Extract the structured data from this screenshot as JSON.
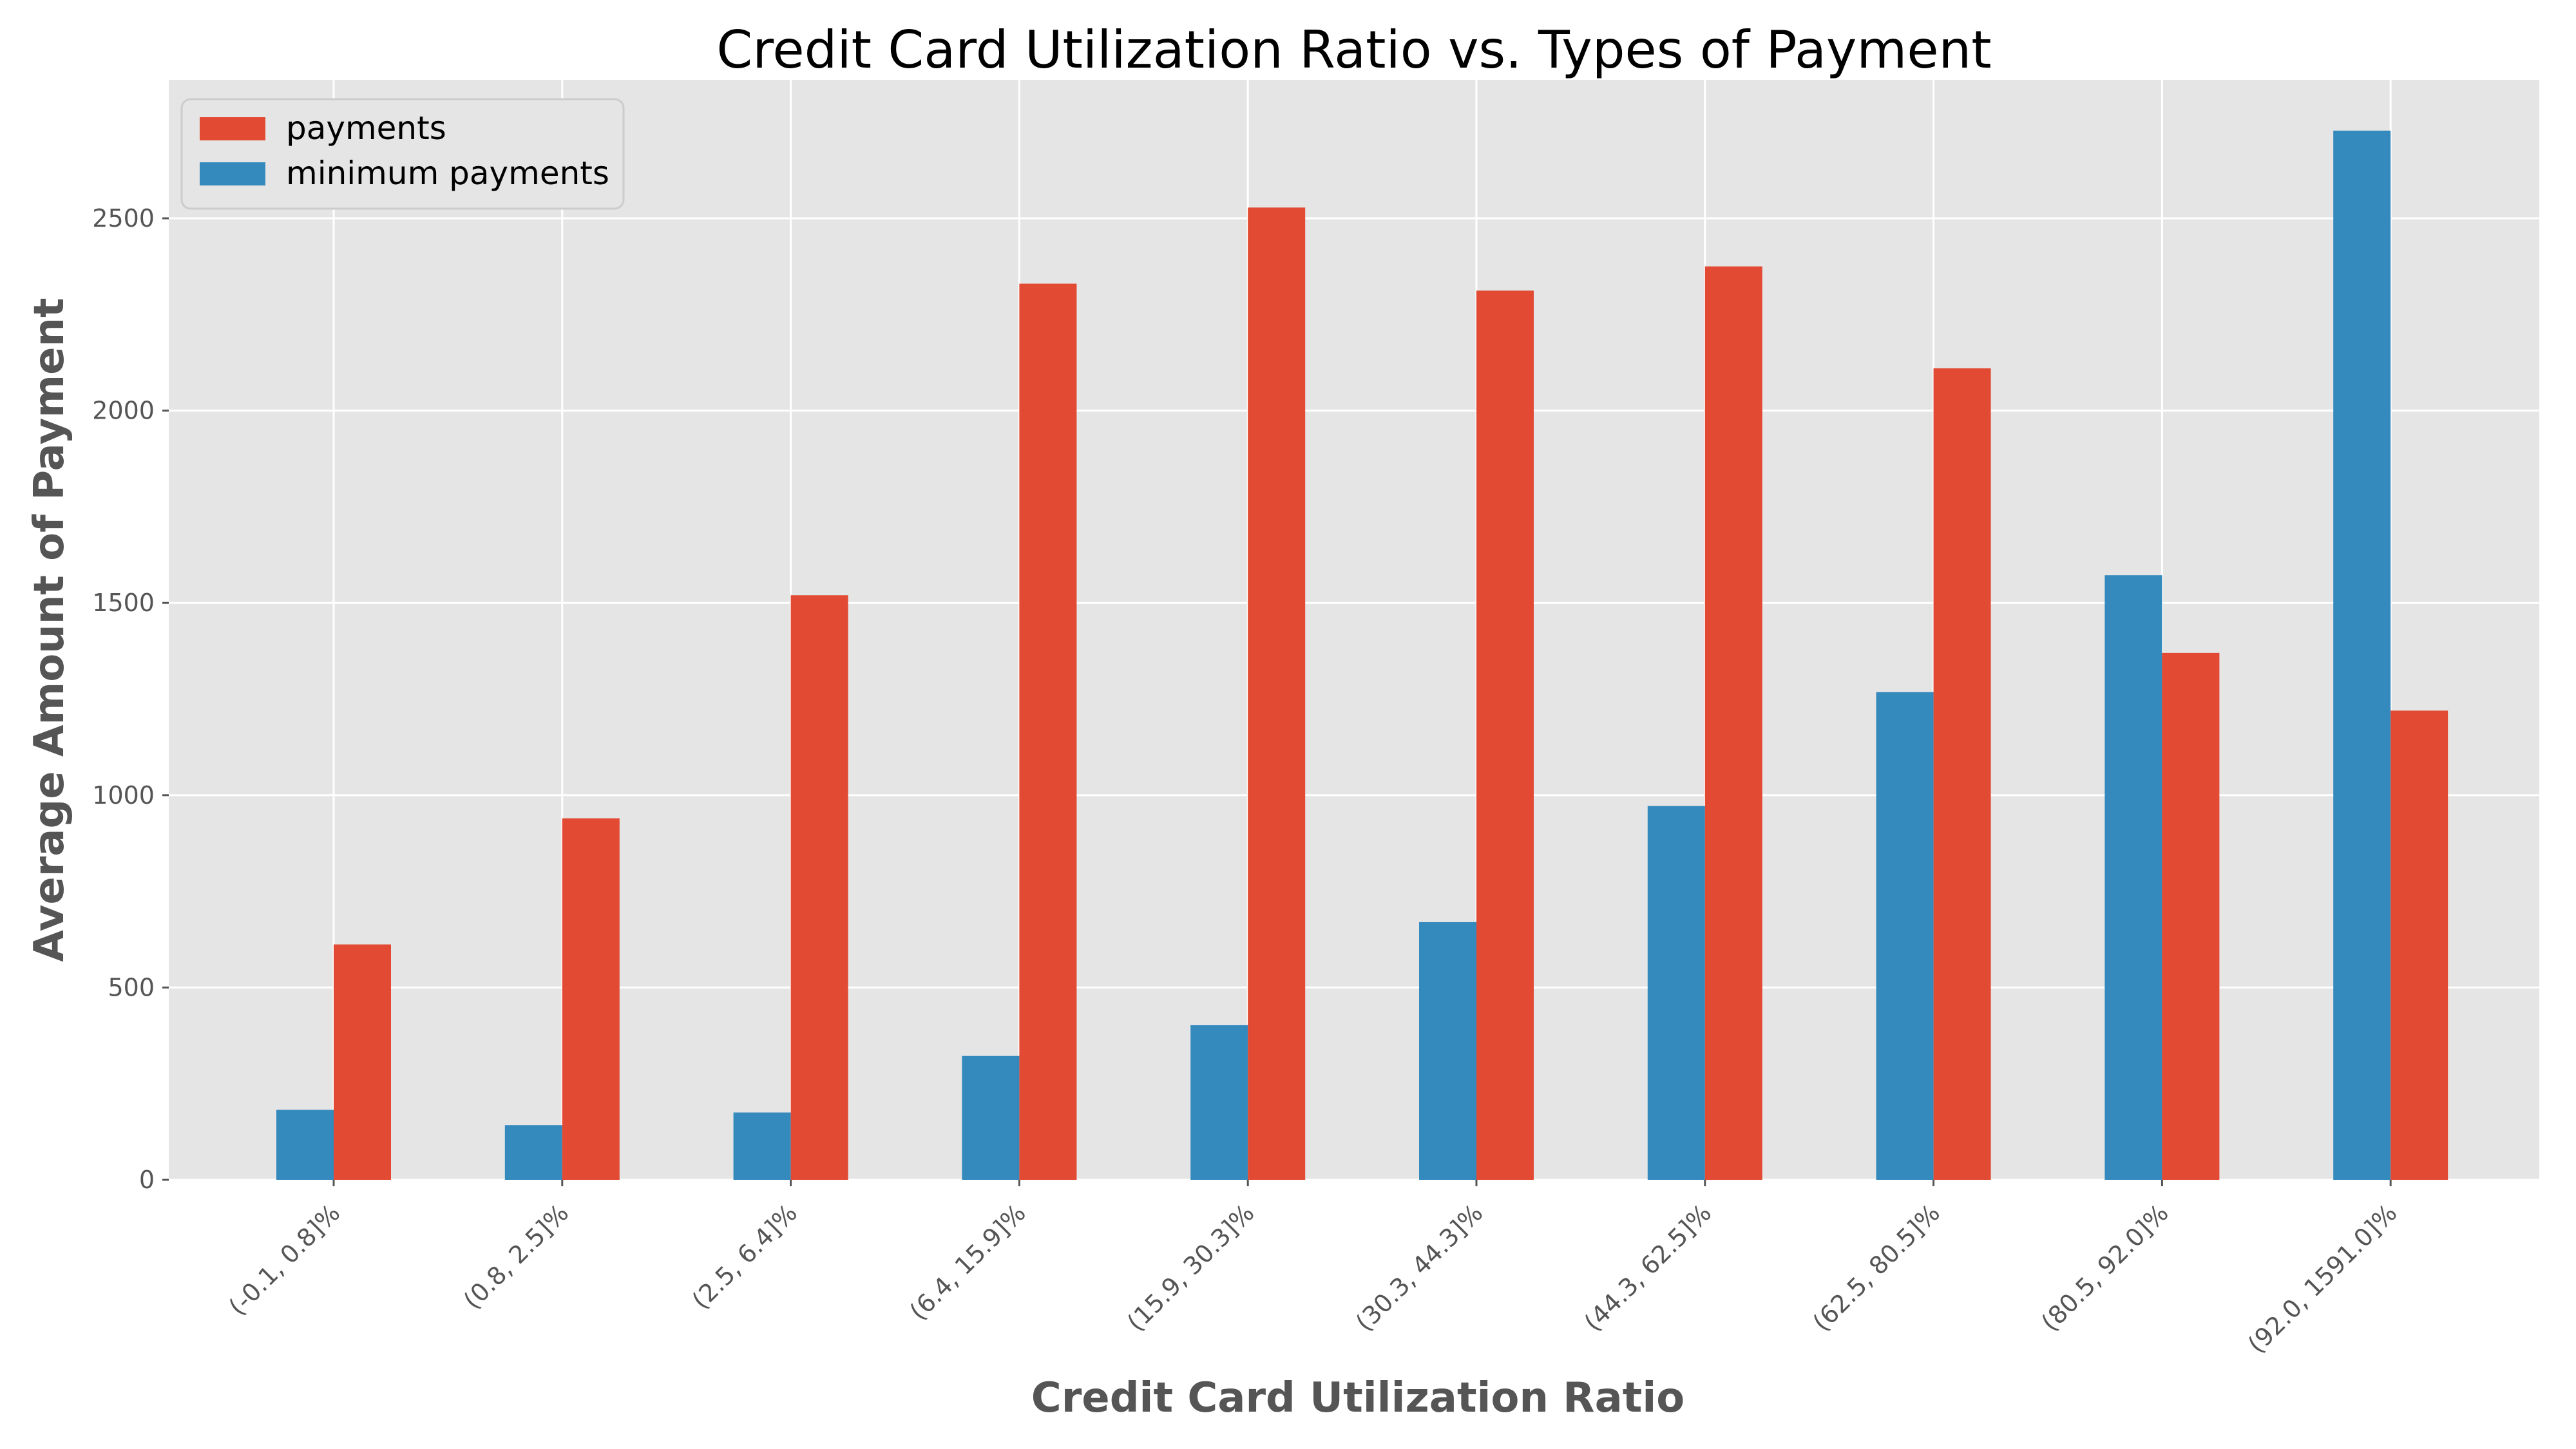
{
  "chart_data": {
    "type": "bar",
    "title": "Credit Card Utilization Ratio vs. Types of Payment",
    "xlabel": "Credit Card Utilization Ratio",
    "ylabel": "Average Amount of Payment",
    "categories": [
      "(-0.1, 0.8]%",
      "(0.8, 2.5]%",
      "(2.5, 6.4]%",
      "(6.4, 15.9]%",
      "(15.9, 30.3]%",
      "(30.3, 44.3]%",
      "(44.3, 62.5]%",
      "(62.5, 80.5]%",
      "(80.5, 92.0]%",
      "(92.0, 1591.0]%"
    ],
    "series": [
      {
        "name": "payments",
        "color": "#E24A33",
        "values": [
          612,
          940,
          1520,
          2330,
          2528,
          2312,
          2375,
          2110,
          1370,
          1220
        ]
      },
      {
        "name": "minimum payments",
        "color": "#348ABD",
        "values": [
          182,
          142,
          175,
          322,
          402,
          670,
          972,
          1268,
          1572,
          2728
        ]
      }
    ],
    "ylim": [
      0,
      2860
    ],
    "yticks": [
      0,
      500,
      1000,
      1500,
      2000,
      2500
    ],
    "grid": true,
    "legend_position": "upper-left"
  }
}
